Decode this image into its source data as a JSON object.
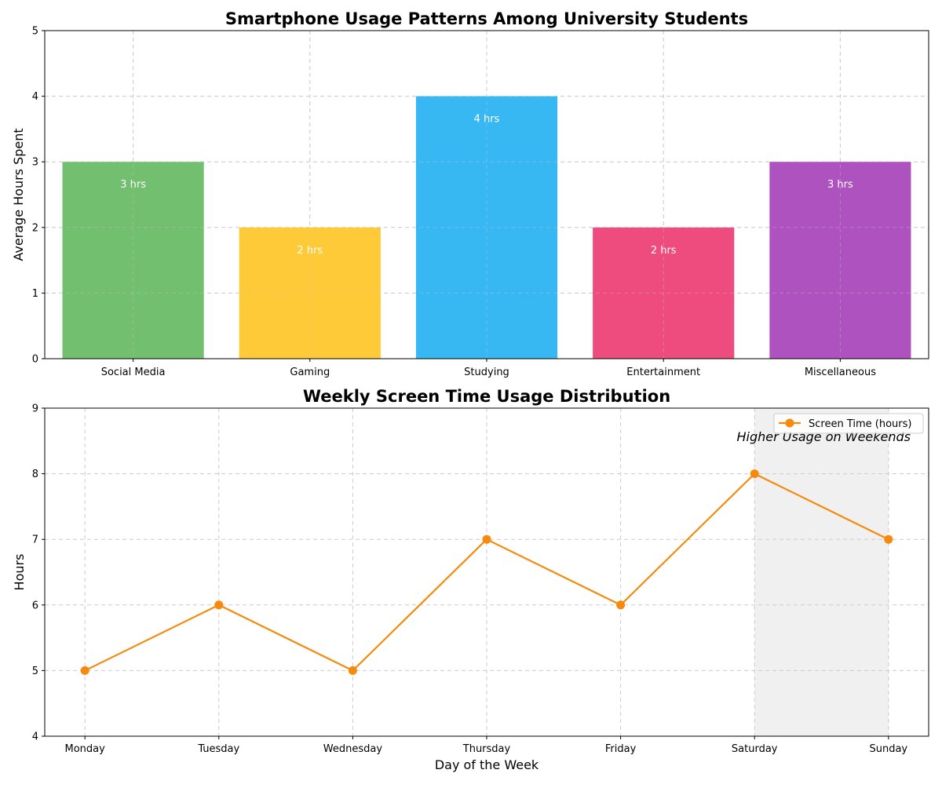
{
  "chart_data": [
    {
      "type": "bar",
      "title": "Smartphone Usage Patterns Among University Students",
      "xlabel": "",
      "ylabel": "Average Hours Spent",
      "categories": [
        "Social Media",
        "Gaming",
        "Studying",
        "Entertainment",
        "Miscellaneous"
      ],
      "values": [
        3,
        2,
        4,
        2,
        3
      ],
      "value_labels": [
        "3 hrs",
        "2 hrs",
        "4 hrs",
        "2 hrs",
        "3 hrs"
      ],
      "colors": [
        "#72bf6f",
        "#ffca38",
        "#37b8f3",
        "#ee4b7f",
        "#ae52bf"
      ],
      "ylim": [
        0,
        5
      ],
      "yticks": [
        0,
        1,
        2,
        3,
        4,
        5
      ],
      "grid": true
    },
    {
      "type": "line",
      "title": "Weekly Screen Time Usage Distribution",
      "xlabel": "Day of the Week",
      "ylabel": "Hours",
      "categories": [
        "Monday",
        "Tuesday",
        "Wednesday",
        "Thursday",
        "Friday",
        "Saturday",
        "Sunday"
      ],
      "series": [
        {
          "name": "Screen Time (hours)",
          "values": [
            5,
            6,
            5,
            7,
            6,
            8,
            7
          ],
          "color": "#f58a0c"
        }
      ],
      "ylim": [
        4,
        9
      ],
      "yticks": [
        4,
        5,
        6,
        7,
        8,
        9
      ],
      "grid": true,
      "legend": "top-right",
      "highlight": {
        "from": "Saturday",
        "to": "Sunday",
        "color": "#f0f0f0"
      },
      "annotation": "Higher Usage on Weekends"
    }
  ]
}
